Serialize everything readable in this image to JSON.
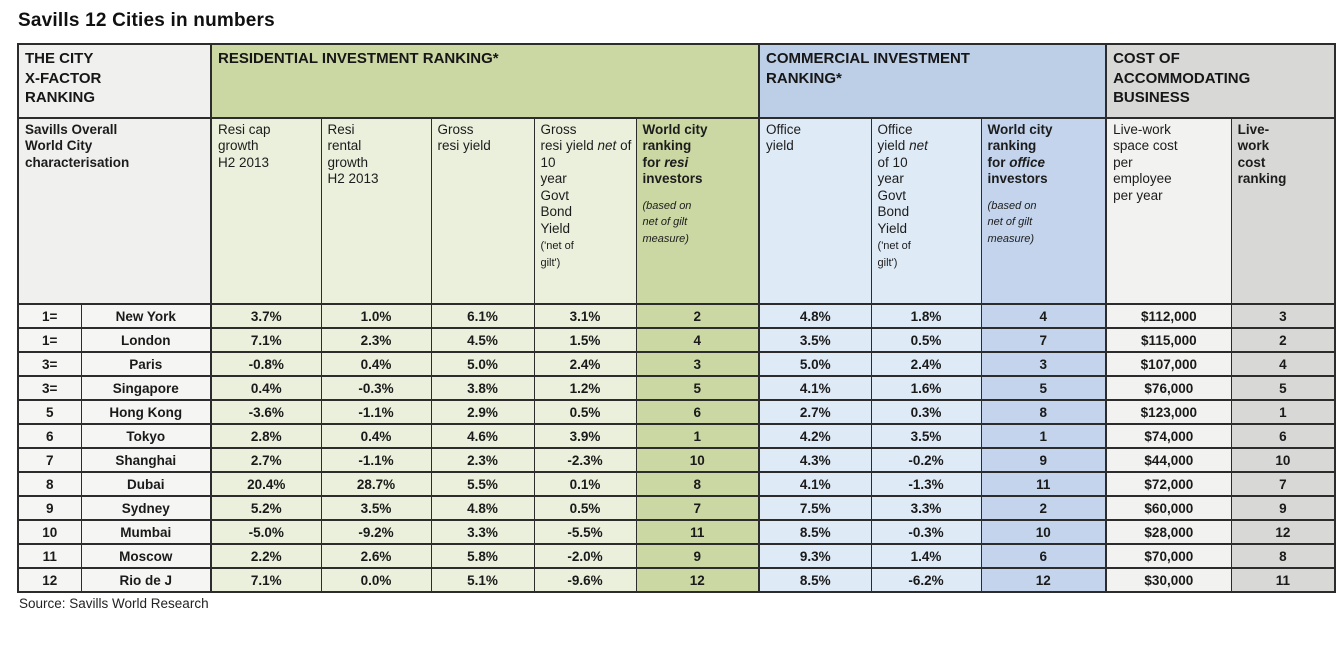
{
  "title": "Savills 12 Cities in numbers",
  "source": "Source: Savills World Research",
  "colors": {
    "resi_band": "#CBD8A4",
    "resi_cells": "#EAF0DC",
    "comm_band": "#BDCEE7",
    "comm_cells": "#DEEAF6",
    "comm_rank_cells": "#C3D4EC",
    "cost_band": "#D8D8D6",
    "cost_cells": "#F2F2F0",
    "city_cells": "#F5F5F3",
    "border": "#2C2C2C"
  },
  "table": {
    "groups": [
      {
        "label": "THE CITY\nX-FACTOR\nRANKING"
      },
      {
        "label": "RESIDENTIAL INVESTMENT RANKING*"
      },
      {
        "label": "COMMERCIAL INVESTMENT\nRANKING*"
      },
      {
        "label": "COST OF\nACCOMMODATING\nBUSINESS"
      }
    ],
    "columns": [
      {
        "id": "city-characterisation",
        "parts": [
          {
            "t": "Savills Overall\nWorld City\ncharacterisation",
            "b": true
          }
        ]
      },
      {
        "id": "resi-cap-growth",
        "parts": [
          {
            "t": "Resi cap\ngrowth\nH2 2013"
          }
        ]
      },
      {
        "id": "resi-rental-growth",
        "parts": [
          {
            "t": "Resi\nrental\ngrowth\nH2 2013"
          }
        ]
      },
      {
        "id": "gross-resi-yield",
        "parts": [
          {
            "t": "Gross\nresi yield"
          }
        ]
      },
      {
        "id": "gross-resi-yield-net",
        "parts": [
          {
            "t": "Gross\nresi yield "
          },
          {
            "t": "net",
            "i": true
          },
          {
            "t": " of 10\nyear\nGovt\nBond\nYield\n"
          },
          {
            "t": "('net of\ngilt')",
            "small": true
          }
        ]
      },
      {
        "id": "resi-ranking",
        "parts": [
          {
            "t": "World city\nranking\nfor ",
            "b": true
          },
          {
            "t": "resi",
            "b": true,
            "i": true
          },
          {
            "t": "\ninvestors",
            "b": true
          },
          {
            "t": "",
            "gap": true
          },
          {
            "t": "(based on\nnet of gilt\nmeasure)",
            "i": true,
            "small": true
          }
        ]
      },
      {
        "id": "office-yield",
        "parts": [
          {
            "t": "Office\nyield"
          }
        ]
      },
      {
        "id": "office-yield-net",
        "parts": [
          {
            "t": "Office\nyield "
          },
          {
            "t": "net",
            "i": true
          },
          {
            "t": "\nof 10\nyear\nGovt\nBond\nYield\n"
          },
          {
            "t": "('net of\ngilt')",
            "small": true
          }
        ]
      },
      {
        "id": "office-ranking",
        "parts": [
          {
            "t": "World city\nranking\nfor ",
            "b": true
          },
          {
            "t": "office",
            "b": true,
            "i": true
          },
          {
            "t": "\ninvestors",
            "b": true
          },
          {
            "t": "",
            "gap": true
          },
          {
            "t": "(based on\nnet of gilt\nmeasure)",
            "i": true,
            "small": true
          }
        ]
      },
      {
        "id": "live-work-cost",
        "parts": [
          {
            "t": "Live-work\nspace cost\nper\nemployee\nper year"
          }
        ]
      },
      {
        "id": "live-work-cost-ranking",
        "parts": [
          {
            "t": "Live-\nwork\ncost\nranking",
            "b": true
          }
        ]
      }
    ],
    "rows": [
      {
        "xfactor_rank": "1=",
        "city": "New York",
        "resi_cap_growth": "3.7%",
        "resi_rental_growth": "1.0%",
        "gross_resi_yield": "6.1%",
        "gross_resi_yield_net": "3.1%",
        "resi_rank": "2",
        "office_yield": "4.8%",
        "office_yield_net": "1.8%",
        "office_rank": "4",
        "live_work_cost": "$112,000",
        "live_work_rank": "3"
      },
      {
        "xfactor_rank": "1=",
        "city": "London",
        "resi_cap_growth": "7.1%",
        "resi_rental_growth": "2.3%",
        "gross_resi_yield": "4.5%",
        "gross_resi_yield_net": "1.5%",
        "resi_rank": "4",
        "office_yield": "3.5%",
        "office_yield_net": "0.5%",
        "office_rank": "7",
        "live_work_cost": "$115,000",
        "live_work_rank": "2"
      },
      {
        "xfactor_rank": "3=",
        "city": "Paris",
        "resi_cap_growth": "-0.8%",
        "resi_rental_growth": "0.4%",
        "gross_resi_yield": "5.0%",
        "gross_resi_yield_net": "2.4%",
        "resi_rank": "3",
        "office_yield": "5.0%",
        "office_yield_net": "2.4%",
        "office_rank": "3",
        "live_work_cost": "$107,000",
        "live_work_rank": "4"
      },
      {
        "xfactor_rank": "3=",
        "city": "Singapore",
        "resi_cap_growth": "0.4%",
        "resi_rental_growth": "-0.3%",
        "gross_resi_yield": "3.8%",
        "gross_resi_yield_net": "1.2%",
        "resi_rank": "5",
        "office_yield": "4.1%",
        "office_yield_net": "1.6%",
        "office_rank": "5",
        "live_work_cost": "$76,000",
        "live_work_rank": "5"
      },
      {
        "xfactor_rank": "5",
        "city": "Hong Kong",
        "resi_cap_growth": "-3.6%",
        "resi_rental_growth": "-1.1%",
        "gross_resi_yield": "2.9%",
        "gross_resi_yield_net": "0.5%",
        "resi_rank": "6",
        "office_yield": "2.7%",
        "office_yield_net": "0.3%",
        "office_rank": "8",
        "live_work_cost": "$123,000",
        "live_work_rank": "1"
      },
      {
        "xfactor_rank": "6",
        "city": "Tokyo",
        "resi_cap_growth": "2.8%",
        "resi_rental_growth": "0.4%",
        "gross_resi_yield": "4.6%",
        "gross_resi_yield_net": "3.9%",
        "resi_rank": "1",
        "office_yield": "4.2%",
        "office_yield_net": "3.5%",
        "office_rank": "1",
        "live_work_cost": "$74,000",
        "live_work_rank": "6"
      },
      {
        "xfactor_rank": "7",
        "city": "Shanghai",
        "resi_cap_growth": "2.7%",
        "resi_rental_growth": "-1.1%",
        "gross_resi_yield": "2.3%",
        "gross_resi_yield_net": "-2.3%",
        "resi_rank": "10",
        "office_yield": "4.3%",
        "office_yield_net": "-0.2%",
        "office_rank": "9",
        "live_work_cost": "$44,000",
        "live_work_rank": "10"
      },
      {
        "xfactor_rank": "8",
        "city": "Dubai",
        "resi_cap_growth": "20.4%",
        "resi_rental_growth": "28.7%",
        "gross_resi_yield": "5.5%",
        "gross_resi_yield_net": "0.1%",
        "resi_rank": "8",
        "office_yield": "4.1%",
        "office_yield_net": "-1.3%",
        "office_rank": "11",
        "live_work_cost": "$72,000",
        "live_work_rank": "7"
      },
      {
        "xfactor_rank": "9",
        "city": "Sydney",
        "resi_cap_growth": "5.2%",
        "resi_rental_growth": "3.5%",
        "gross_resi_yield": "4.8%",
        "gross_resi_yield_net": "0.5%",
        "resi_rank": "7",
        "office_yield": "7.5%",
        "office_yield_net": "3.3%",
        "office_rank": "2",
        "live_work_cost": "$60,000",
        "live_work_rank": "9"
      },
      {
        "xfactor_rank": "10",
        "city": "Mumbai",
        "resi_cap_growth": "-5.0%",
        "resi_rental_growth": "-9.2%",
        "gross_resi_yield": "3.3%",
        "gross_resi_yield_net": "-5.5%",
        "resi_rank": "11",
        "office_yield": "8.5%",
        "office_yield_net": "-0.3%",
        "office_rank": "10",
        "live_work_cost": "$28,000",
        "live_work_rank": "12"
      },
      {
        "xfactor_rank": "11",
        "city": "Moscow",
        "resi_cap_growth": "2.2%",
        "resi_rental_growth": "2.6%",
        "gross_resi_yield": "5.8%",
        "gross_resi_yield_net": "-2.0%",
        "resi_rank": "9",
        "office_yield": "9.3%",
        "office_yield_net": "1.4%",
        "office_rank": "6",
        "live_work_cost": "$70,000",
        "live_work_rank": "8"
      },
      {
        "xfactor_rank": "12",
        "city": "Rio de J",
        "resi_cap_growth": "7.1%",
        "resi_rental_growth": "0.0%",
        "gross_resi_yield": "5.1%",
        "gross_resi_yield_net": "-9.6%",
        "resi_rank": "12",
        "office_yield": "8.5%",
        "office_yield_net": "-6.2%",
        "office_rank": "12",
        "live_work_cost": "$30,000",
        "live_work_rank": "11"
      }
    ]
  }
}
